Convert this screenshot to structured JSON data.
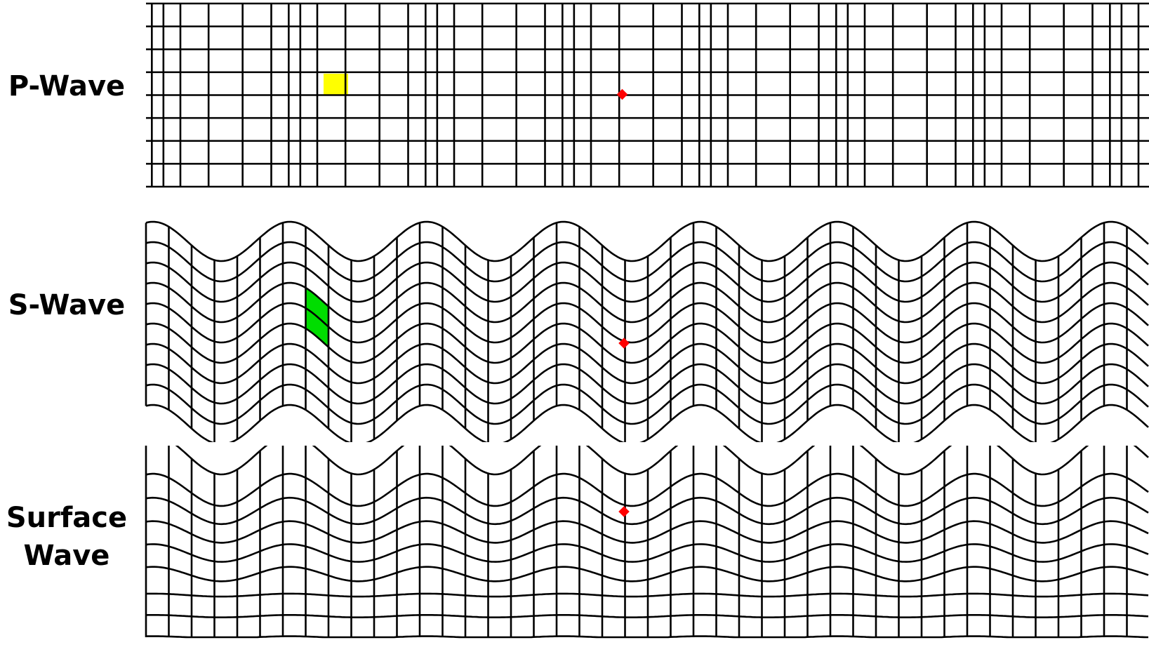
{
  "panels": [
    {
      "key": "p",
      "label_lines": [
        "P-Wave"
      ],
      "highlight_color": "#FFFF00"
    },
    {
      "key": "s",
      "label_lines": [
        "S-Wave"
      ],
      "highlight_color": "#00DD00"
    },
    {
      "key": "surface",
      "label_lines": [
        "Surface",
        "Wave"
      ]
    }
  ],
  "colors": {
    "grid_line": "#000000",
    "marker": "#FF0000",
    "background": "#FFFFFF"
  }
}
